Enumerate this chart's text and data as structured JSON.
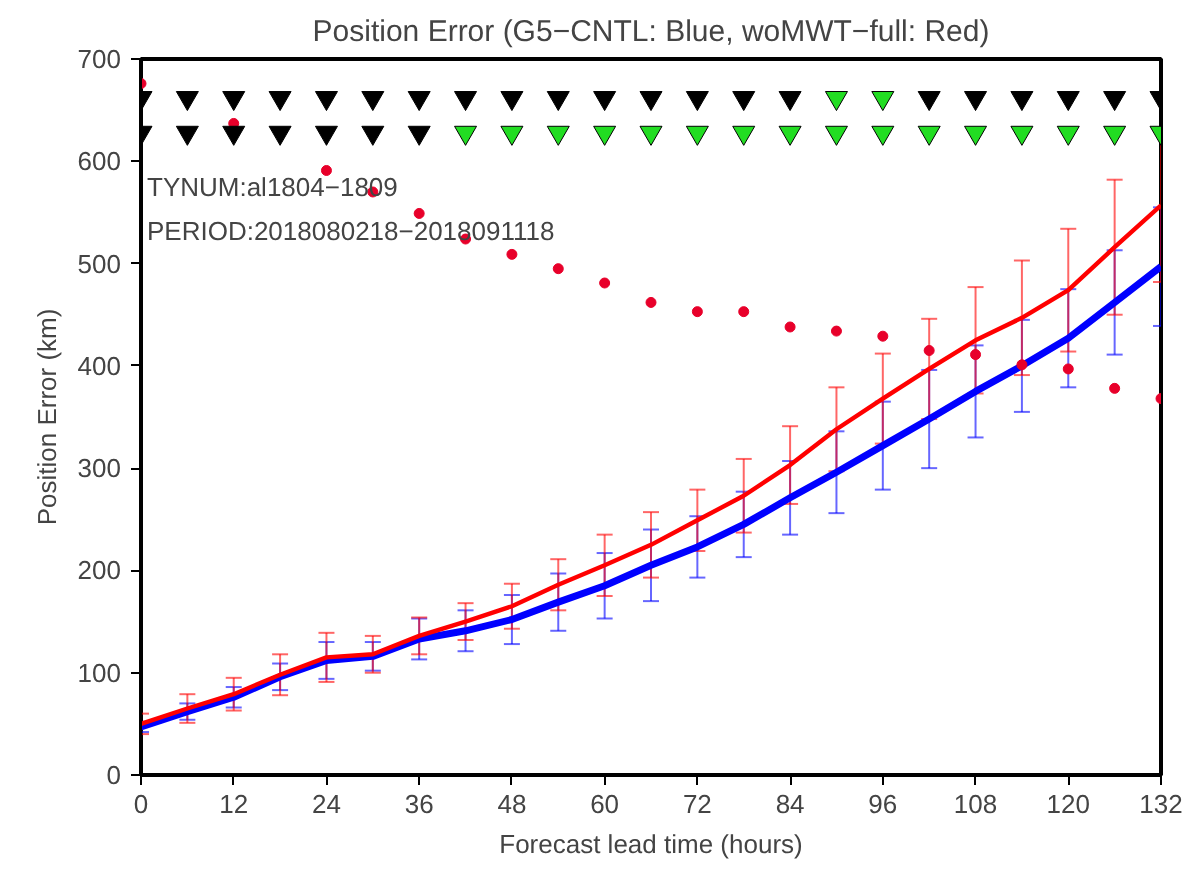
{
  "chart_data": {
    "type": "line",
    "title": "Position Error (G5−CNTL: Blue, woMWT−full: Red)",
    "xlabel": "Forecast lead time (hours)",
    "ylabel": "Position Error (km)",
    "x": [
      0,
      6,
      12,
      18,
      24,
      30,
      36,
      42,
      48,
      54,
      60,
      66,
      72,
      78,
      84,
      90,
      96,
      102,
      108,
      114,
      120,
      126,
      132
    ],
    "xlim": [
      0,
      132
    ],
    "ylim": [
      0,
      700
    ],
    "xticks": [
      0,
      12,
      24,
      36,
      48,
      60,
      72,
      84,
      96,
      108,
      120,
      132
    ],
    "yticks": [
      0,
      100,
      200,
      300,
      400,
      500,
      600,
      700
    ],
    "grid": false,
    "marker": "none",
    "line_style": "solid",
    "annotations": [
      "TYNUM:al1804−1809",
      "PERIOD:2018080218−2018091118"
    ],
    "series": [
      {
        "color": "#0000ff",
        "values": [
          47,
          62,
          76,
          96,
          112,
          116,
          133,
          141,
          152,
          169,
          185,
          205,
          223,
          245,
          271,
          296,
          322,
          348,
          375,
          400,
          427,
          462,
          497
        ],
        "errors": [
          5,
          8,
          10,
          13,
          18,
          14,
          20,
          20,
          24,
          28,
          32,
          35,
          30,
          32,
          36,
          40,
          43,
          48,
          45,
          45,
          48,
          51,
          58
        ]
      },
      {
        "color": "#ff0000",
        "values": [
          50,
          65,
          79,
          98,
          115,
          118,
          136,
          150,
          165,
          186,
          205,
          225,
          249,
          273,
          303,
          338,
          368,
          397,
          425,
          447,
          474,
          516,
          557
        ],
        "errors": [
          10,
          14,
          16,
          20,
          24,
          18,
          18,
          18,
          22,
          25,
          30,
          32,
          30,
          36,
          38,
          41,
          44,
          49,
          52,
          56,
          60,
          66,
          75
        ]
      },
      {
        "type": "scatter",
        "marker": "circle",
        "color": "#e8002a",
        "values": [
          676,
          null,
          637,
          null,
          591,
          570,
          549,
          524,
          509,
          495,
          481,
          462,
          453,
          453,
          438,
          434,
          429,
          415,
          411,
          401,
          397,
          378,
          368
        ]
      },
      {
        "type": "scatter",
        "marker": "triangle",
        "values": [
          662,
          662,
          662,
          662,
          662,
          662,
          662,
          662,
          662,
          662,
          662,
          662,
          662,
          662,
          662,
          662,
          662,
          662,
          662,
          662,
          662,
          662,
          662
        ],
        "colors": [
          "#000000",
          "#000000",
          "#000000",
          "#000000",
          "#000000",
          "#000000",
          "#000000",
          "#000000",
          "#000000",
          "#000000",
          "#000000",
          "#000000",
          "#000000",
          "#000000",
          "#000000",
          "#22dd22",
          "#22dd22",
          "#000000",
          "#000000",
          "#000000",
          "#000000",
          "#000000",
          "#000000"
        ]
      },
      {
        "type": "scatter",
        "marker": "triangle",
        "values": [
          628,
          628,
          628,
          628,
          628,
          628,
          628,
          628,
          628,
          628,
          628,
          628,
          628,
          628,
          628,
          628,
          628,
          628,
          628,
          628,
          628,
          628,
          628
        ],
        "colors": [
          "#000000",
          "#000000",
          "#000000",
          "#000000",
          "#000000",
          "#000000",
          "#000000",
          "#22dd22",
          "#22dd22",
          "#22dd22",
          "#22dd22",
          "#22dd22",
          "#22dd22",
          "#22dd22",
          "#22dd22",
          "#22dd22",
          "#22dd22",
          "#22dd22",
          "#22dd22",
          "#22dd22",
          "#22dd22",
          "#22dd22",
          "#22dd22"
        ]
      }
    ]
  }
}
